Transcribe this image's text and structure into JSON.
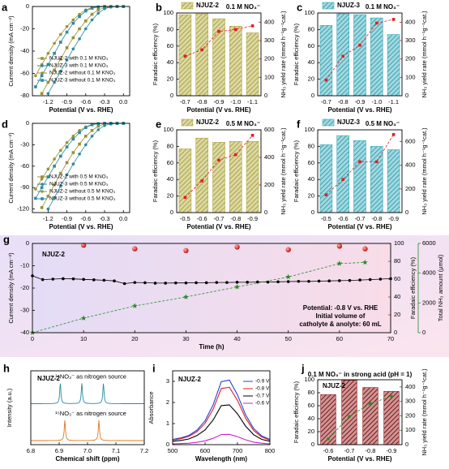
{
  "chart_data": [
    {
      "panel": "a",
      "type": "line",
      "xlabel": "Potential (V vs. RHE)",
      "ylabel": "Current density (mA cm⁻²)",
      "xlim": [
        -1.45,
        0.1
      ],
      "xticks": [
        -1.2,
        -0.9,
        -0.6,
        -0.3,
        {
          "value": 0,
          "label": "0.0"
        }
      ],
      "ylim": [
        -80,
        0
      ],
      "yticks": [
        -80,
        -60,
        -40,
        -20,
        0
      ],
      "x": [
        -1.4,
        -1.3,
        -1.2,
        -1.1,
        -1.0,
        -0.9,
        -0.8,
        -0.7,
        -0.6,
        -0.5,
        -0.4,
        -0.3,
        -0.2,
        -0.1,
        0
      ],
      "series": [
        {
          "name": "NJUZ-2 with 0.1 M KNO₃",
          "color": "#9a9030",
          "marker": "square",
          "values": [
            null,
            -78,
            -68,
            -57,
            -47,
            -37,
            -28,
            -20,
            -13,
            -7,
            -3,
            -1,
            -0.3,
            0,
            0
          ]
        },
        {
          "name": "NJUZ-3 with 0.1 M KNO₃",
          "color": "#2a8aa0",
          "marker": "circle",
          "values": [
            null,
            null,
            -78,
            -68,
            -58,
            -48,
            -38,
            -29,
            -20,
            -12,
            -6,
            -2,
            -0.5,
            0,
            0
          ]
        },
        {
          "name": "NJUZ-2 without 0.1 M KNO₃",
          "color": "#9a9030",
          "marker": "circle",
          "values": [
            -62,
            -52,
            -42,
            -33,
            -25,
            -18,
            -12,
            -7,
            -3,
            -1,
            -0.3,
            0,
            0,
            0,
            0
          ]
        },
        {
          "name": "NJUZ-3 without 0.1 M KNO₃",
          "color": "#2a8aa0",
          "marker": "square",
          "values": [
            -72,
            -62,
            -52,
            -42,
            -32,
            -23,
            -15,
            -9,
            -4,
            -1.5,
            -0.5,
            0,
            0,
            0,
            0
          ]
        }
      ]
    },
    {
      "panel": "b",
      "type": "bar",
      "xlabel": "Potential (V vs. RHE)",
      "ylabel": "Faradaic efficiency (%)",
      "y2label": "NH₃ yield rate (mmol h⁻¹g⁻¹cat.)",
      "categories": [
        "-0.7",
        "-0.8",
        "-0.9",
        "-1.0",
        "-1.1"
      ],
      "ylim": [
        0,
        100
      ],
      "yticks": [
        0,
        20,
        40,
        60,
        80,
        100
      ],
      "y2lim": [
        0,
        450
      ],
      "y2ticks": [
        0,
        100,
        200,
        300,
        400
      ],
      "annotations": [
        "0.1 M NO₃⁻"
      ],
      "series": [
        {
          "name": "NJUZ-2",
          "color": "#b0a840",
          "values": [
            98,
            99,
            93,
            84,
            76
          ]
        },
        {
          "color": "#e02020",
          "axis": "y2",
          "marker": "square",
          "dash": true,
          "values": [
            215,
            250,
            350,
            360,
            380
          ]
        }
      ]
    },
    {
      "panel": "c",
      "type": "bar",
      "xlabel": "Potential (V vs. RHE)",
      "ylabel": "Faradaic efficiency (%)",
      "y2label": "NH₃ yield rate (mmol h⁻¹g⁻¹cat.)",
      "categories": [
        "-0.7",
        "-0.8",
        "-0.9",
        "-1.0",
        "-1.1"
      ],
      "ylim": [
        0,
        100
      ],
      "yticks": [
        0,
        20,
        40,
        60,
        80,
        100
      ],
      "y2lim": [
        0,
        450
      ],
      "y2ticks": [
        0,
        100,
        200,
        300,
        400
      ],
      "annotations": [
        "0.1 M NO₃⁻"
      ],
      "series": [
        {
          "name": "NJUZ-3",
          "color": "#3aa8b8",
          "values": [
            85,
            99,
            98,
            94,
            74
          ]
        },
        {
          "color": "#e02020",
          "axis": "y2",
          "marker": "square",
          "dash": true,
          "values": [
            85,
            215,
            275,
            395,
            415
          ]
        }
      ]
    },
    {
      "panel": "d",
      "type": "line",
      "xlabel": "Potential (V vs. RHE)",
      "ylabel": "Current density (mA cm⁻²)",
      "xlim": [
        -1.45,
        0.1
      ],
      "xticks": [
        -1.2,
        -0.9,
        -0.6,
        -0.3,
        {
          "value": 0,
          "label": "0.0"
        }
      ],
      "ylim": [
        -125,
        0
      ],
      "yticks": [
        -120,
        -90,
        -60,
        -30,
        0
      ],
      "x": [
        -1.4,
        -1.3,
        -1.2,
        -1.1,
        -1.0,
        -0.9,
        -0.8,
        -0.7,
        -0.6,
        -0.5,
        -0.4,
        -0.3,
        -0.2,
        -0.1,
        0
      ],
      "series": [
        {
          "name": "NJUZ-2 with 0.5 M KNO₃",
          "color": "#9a9030",
          "marker": "square",
          "values": [
            null,
            -118,
            -102,
            -86,
            -70,
            -55,
            -41,
            -29,
            -18,
            -10,
            -4,
            -1,
            0,
            0,
            0
          ]
        },
        {
          "name": "NJUZ-3 with 0.5 M KNO₃",
          "color": "#2a8aa0",
          "marker": "circle",
          "values": [
            null,
            null,
            -120,
            -104,
            -88,
            -72,
            -57,
            -43,
            -30,
            -18,
            -9,
            -3,
            -1,
            0,
            0
          ]
        },
        {
          "name": "NJUZ-2 without 0.5 M KNO₃",
          "color": "#9a9030",
          "marker": "circle",
          "values": [
            -92,
            -78,
            -64,
            -50,
            -38,
            -27,
            -18,
            -10,
            -5,
            -1.5,
            -0.3,
            0,
            0,
            0,
            0
          ]
        },
        {
          "name": "NJUZ-3 without 0.5 M KNO₃",
          "color": "#2a8aa0",
          "marker": "square",
          "values": [
            -105,
            -90,
            -75,
            -60,
            -46,
            -33,
            -22,
            -13,
            -6,
            -2,
            -0.5,
            0,
            0,
            0,
            0
          ]
        }
      ]
    },
    {
      "panel": "e",
      "type": "bar",
      "xlabel": "Potential (V vs. RHE)",
      "ylabel": "Faradaic efficiency (%)",
      "y2label": "NH₃ yield rate (mmol h⁻¹g⁻¹cat.)",
      "categories": [
        "-0.5",
        "-0.6",
        "-0.7",
        "-0.8",
        "-0.9"
      ],
      "ylim": [
        0,
        100
      ],
      "yticks": [
        0,
        20,
        40,
        60,
        80,
        100
      ],
      "y2lim": [
        0,
        600
      ],
      "y2ticks": [
        0,
        200,
        400,
        600
      ],
      "annotations": [
        "0.5 M NO₃⁻"
      ],
      "series": [
        {
          "name": "NJUZ-2",
          "color": "#b0a840",
          "values": [
            77,
            90,
            85,
            86,
            86
          ]
        },
        {
          "color": "#e02020",
          "axis": "y2",
          "marker": "square",
          "dash": true,
          "values": [
            110,
            230,
            380,
            420,
            560
          ]
        }
      ]
    },
    {
      "panel": "f",
      "type": "bar",
      "xlabel": "Potential (V vs. RHE)",
      "ylabel": "Faradaic efficiency (%)",
      "y2label": "NH₃ yield rate (mmol h⁻¹g⁻¹cat.)",
      "categories": [
        "-0.5",
        "-0.6",
        "-0.7",
        "-0.8",
        "-0.9"
      ],
      "ylim": [
        0,
        100
      ],
      "yticks": [
        0,
        20,
        40,
        60,
        80,
        100
      ],
      "y2lim": [
        0,
        700
      ],
      "y2ticks": [
        0,
        200,
        400,
        600
      ],
      "annotations": [
        "0.5 M NO₃⁻"
      ],
      "series": [
        {
          "name": "NJUZ-3",
          "color": "#3aa8b8",
          "values": [
            82,
            93,
            87,
            80,
            76
          ]
        },
        {
          "color": "#e02020",
          "axis": "y2",
          "marker": "square",
          "dash": true,
          "values": [
            150,
            280,
            430,
            430,
            660
          ]
        }
      ]
    },
    {
      "panel": "g",
      "type": "line",
      "label": "NJUZ-2",
      "xlabel": "Time (h)",
      "ylabel": "Current density (mA cm⁻²)",
      "y2label": "Faradaic efficiency (%)",
      "y3label": "Total NH₃ amount (μmol)",
      "xlim": [
        0,
        70
      ],
      "xticks": [
        0,
        10,
        20,
        30,
        40,
        50,
        60,
        70
      ],
      "ylim": [
        -40,
        0
      ],
      "yticks": [
        -40,
        -30,
        -20,
        -10,
        0
      ],
      "y2lim": [
        0,
        100
      ],
      "y2ticks": [
        0,
        20,
        40,
        60,
        80,
        100
      ],
      "y3lim": [
        0,
        6000
      ],
      "y3ticks": [
        0,
        2000,
        4000,
        6000
      ],
      "annotations": [
        "Potential: -0.8 V vs. RHE",
        "Initial volume of",
        "catholyte & anolyte: 60 mL"
      ],
      "x": [
        0,
        2,
        4,
        6,
        8,
        10,
        12,
        14,
        16,
        18,
        20,
        22,
        24,
        26,
        28,
        30,
        32,
        34,
        36,
        38,
        40,
        42,
        44,
        46,
        48,
        50,
        52,
        54,
        56,
        58,
        60,
        62,
        64,
        66,
        68,
        70
      ],
      "series": [
        {
          "color": "#000000",
          "marker": "circle",
          "values": [
            -14.5,
            -16.2,
            -16,
            -15.8,
            -15.9,
            -16.1,
            -16.3,
            -16.5,
            -16.8,
            -18,
            -17.5,
            -17.6,
            -17.8,
            -17.8,
            -17.7,
            -17.7,
            -17.6,
            -17.6,
            -17.5,
            -17.5,
            -17.4,
            -17.4,
            -17.3,
            -17.3,
            -17.2,
            -17.1,
            -17,
            -17,
            -16.9,
            -16.8,
            -16.7,
            -16.6,
            -16.4,
            -16.2,
            -16,
            -15.8
          ]
        },
        {
          "color": "#e02020",
          "axis": "y2",
          "marker": "ball",
          "line": false,
          "x": [
            10,
            20,
            30,
            40,
            50,
            60,
            65
          ],
          "values": [
            98,
            94,
            92,
            96,
            93,
            97,
            94
          ]
        },
        {
          "color": "#2a8a2a",
          "axis": "y3",
          "marker": "star",
          "dash": true,
          "x": [
            0,
            10,
            20,
            30,
            40,
            50,
            60,
            65
          ],
          "values": [
            0,
            975,
            1800,
            2400,
            3075,
            3750,
            4650,
            4725
          ]
        }
      ]
    },
    {
      "panel": "h",
      "type": "spectrum",
      "label": "NJUZ-2",
      "xlabel": "Chemical shift (ppm)",
      "ylabel": "Intensity (a.u.)",
      "xlim": [
        6.8,
        7.2
      ],
      "xticks": [
        6.8,
        6.9,
        {
          "value": 7,
          "label": "7.0"
        },
        7.1,
        7.2
      ],
      "series": [
        {
          "name": "¹⁴NO₃⁻ as nitrogen source",
          "color": "#2a8aa0",
          "peaks": [
            6.904,
            6.98,
            7.056
          ]
        },
        {
          "name": "¹⁵NO₃⁻ as nitrogen source",
          "color": "#e07820",
          "peaks": [
            6.92,
            7.04
          ]
        }
      ]
    },
    {
      "panel": "i",
      "type": "line",
      "label": "NJUZ-2",
      "xlabel": "Wavelength (nm)",
      "ylabel": "Absorbance",
      "xlim": [
        500,
        800
      ],
      "xticks": [
        500,
        600,
        700,
        800
      ],
      "ylim": [
        0,
        3.5
      ],
      "yticks": [
        0,
        1,
        2,
        3
      ],
      "x": [
        500,
        525,
        550,
        575,
        600,
        625,
        650,
        675,
        700,
        725,
        750,
        775,
        800
      ],
      "series": [
        {
          "name": "-0.9 V",
          "color": "#2040e0",
          "values": [
            0.25,
            0.32,
            0.44,
            0.69,
            1.13,
            1.89,
            2.99,
            3.06,
            2.36,
            1.42,
            0.76,
            0.41,
            0.25
          ]
        },
        {
          "name": "-0.8 V",
          "color": "#e02020",
          "values": [
            0.22,
            0.28,
            0.39,
            0.62,
            1.01,
            1.68,
            2.66,
            2.72,
            2.1,
            1.26,
            0.67,
            0.36,
            0.22
          ]
        },
        {
          "name": "-0.7 V",
          "color": "#000000",
          "values": [
            0.16,
            0.2,
            0.27,
            0.43,
            0.7,
            1.17,
            1.85,
            1.89,
            1.46,
            0.88,
            0.47,
            0.25,
            0.16
          ]
        },
        {
          "name": "-0.6 V",
          "color": "#d020d0",
          "values": [
            0.04,
            0.05,
            0.07,
            0.11,
            0.18,
            0.3,
            0.48,
            0.49,
            0.38,
            0.23,
            0.12,
            0.07,
            0.04
          ]
        }
      ]
    },
    {
      "panel": "j",
      "type": "bar",
      "label": "NJUZ-2",
      "xlabel": "Potential (V vs. RHE)",
      "ylabel": "Faradaic efficiency (%)",
      "y2label": "NH₃ yield rate (mmol h⁻¹g⁻¹cat.)",
      "categories": [
        "-0.6",
        "-0.7",
        "-0.8",
        "-0.9"
      ],
      "ylim": [
        0,
        100
      ],
      "yticks": [
        0,
        20,
        40,
        60,
        80,
        100
      ],
      "y2lim": [
        0,
        450
      ],
      "y2ticks": [
        0,
        100,
        200,
        300,
        400
      ],
      "annotations": [
        "0.1 M NO₃⁻ in strong acid (pH = 1)"
      ],
      "series": [
        {
          "color": "#8b1a1a",
          "values": [
            77,
            99,
            88,
            82
          ]
        },
        {
          "color": "#2a8a2a",
          "axis": "y2",
          "marker": "circle",
          "dash": true,
          "values": [
            40,
            195,
            285,
            335
          ]
        }
      ]
    }
  ]
}
